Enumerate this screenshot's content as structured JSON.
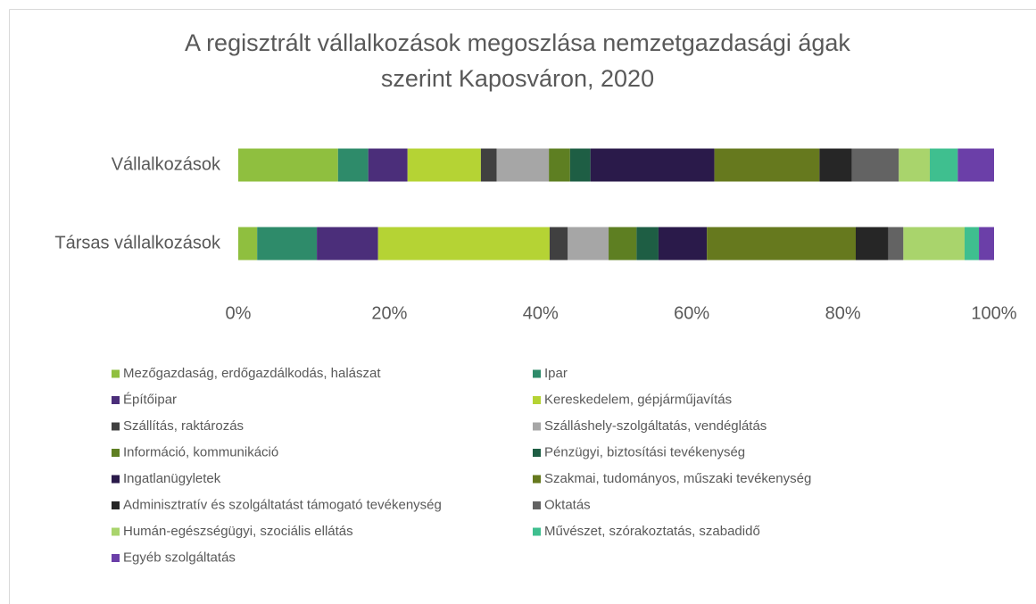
{
  "chart_data": {
    "type": "stacked_barh",
    "title": "A regisztrált vállalkozások megoszlása nemzetgazdasági ágak szerint Kaposváron, 2020",
    "categories": [
      "Vállalkozások",
      "Társas vállalkozások"
    ],
    "xlim": [
      0,
      100
    ],
    "xticks": [
      {
        "value": 0,
        "label": "0%"
      },
      {
        "value": 20,
        "label": "20%"
      },
      {
        "value": 40,
        "label": "40%"
      },
      {
        "value": 60,
        "label": "60%"
      },
      {
        "value": 80,
        "label": "80%"
      },
      {
        "value": 100,
        "label": "100%"
      }
    ],
    "legend": "bottom",
    "series": [
      {
        "name": "Mezőgazdaság, erdőgazdálkodás, halászat",
        "color": "#8fbf3f",
        "values": [
          13.2,
          2.5
        ]
      },
      {
        "name": "Ipar",
        "color": "#2e8b6a",
        "values": [
          4.0,
          7.9
        ]
      },
      {
        "name": "Építőipar",
        "color": "#4b2e7a",
        "values": [
          5.2,
          8.1
        ]
      },
      {
        "name": "Kereskedelem, gépjárműjavítás",
        "color": "#b5d334",
        "values": [
          9.7,
          22.7
        ]
      },
      {
        "name": "Szállítás, raktározás",
        "color": "#404040",
        "values": [
          2.1,
          2.4
        ]
      },
      {
        "name": "Szálláshely-szolgáltatás, vendéglátás",
        "color": "#a6a6a6",
        "values": [
          6.9,
          5.4
        ]
      },
      {
        "name": "Információ, kommunikáció",
        "color": "#5e7f22",
        "values": [
          2.8,
          3.7
        ]
      },
      {
        "name": "Pénzügyi, biztosítási tevékenység",
        "color": "#1e5e44",
        "values": [
          2.7,
          2.9
        ]
      },
      {
        "name": "Ingatlanügyletek",
        "color": "#2a1a4a",
        "values": [
          16.4,
          6.4
        ]
      },
      {
        "name": "Szakmai, tudományos, műszaki tevékenység",
        "color": "#66791e",
        "values": [
          13.9,
          19.7
        ]
      },
      {
        "name": "Adminisztratív és szolgáltatást támogató tevékenység",
        "color": "#262626",
        "values": [
          4.3,
          4.3
        ]
      },
      {
        "name": "Oktatás",
        "color": "#636363",
        "values": [
          6.2,
          2.0
        ]
      },
      {
        "name": "Humán-egészségügyi, szociális ellátás",
        "color": "#a9d46c",
        "values": [
          4.1,
          8.1
        ]
      },
      {
        "name": "Művészet, szórakoztatás, szabadidő",
        "color": "#3fbf8f",
        "values": [
          3.7,
          1.9
        ]
      },
      {
        "name": "Egyéb szolgáltatás",
        "color": "#6b3fa8",
        "values": [
          4.8,
          2.0
        ]
      }
    ]
  }
}
